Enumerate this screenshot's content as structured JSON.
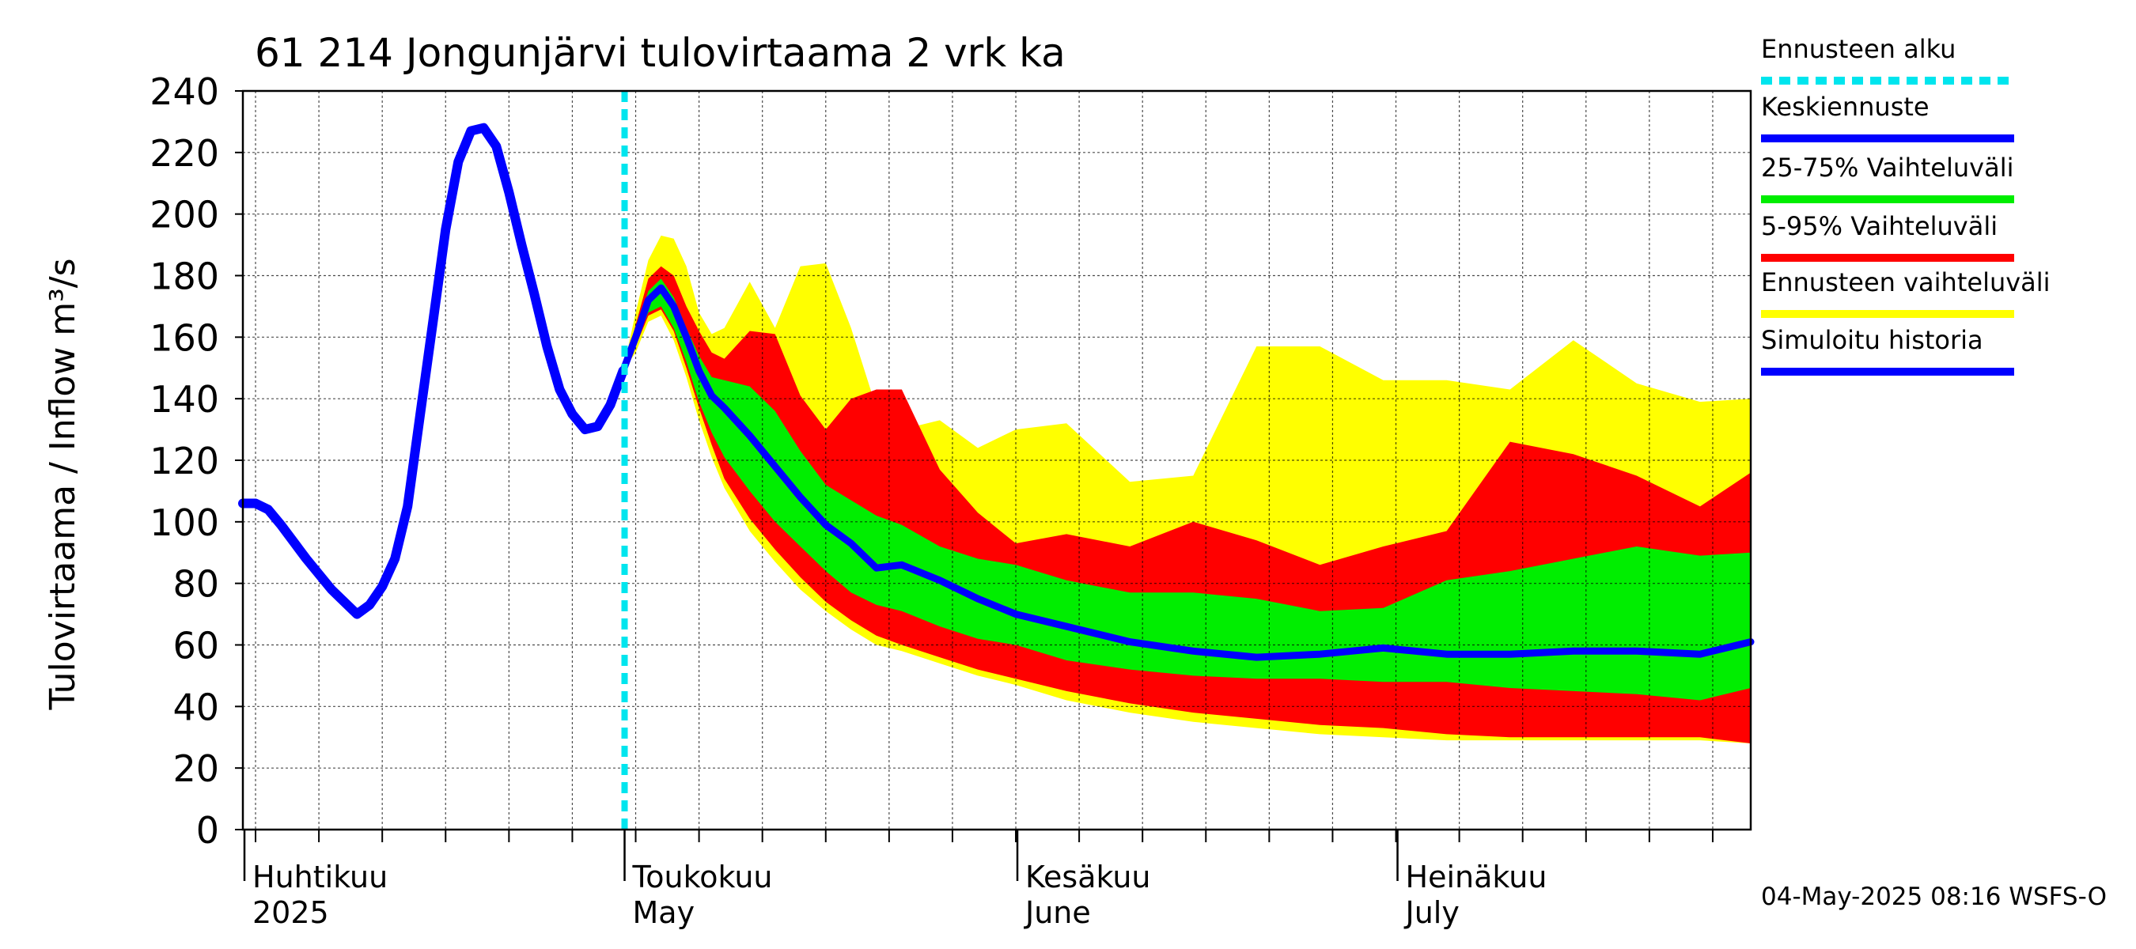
{
  "title": "61 214 Jongunjärvi tulovirtaama 2 vrk ka",
  "ylabel": "Tulovirtaama / Inflow   m³/s",
  "footer": "04-May-2025 08:16 WSFS-O",
  "month_labels": [
    {
      "fi": "Huhtikuu",
      "en": "2025",
      "day": 0
    },
    {
      "fi": "Toukokuu",
      "en": "May",
      "day": 30
    },
    {
      "fi": "Kesäkuu",
      "en": "June",
      "day": 61
    },
    {
      "fi": "Heinäkuu",
      "en": "July",
      "day": 91
    }
  ],
  "legend": [
    {
      "label": "Ennusteen alku",
      "color": "#00e5ee",
      "style": "dotted"
    },
    {
      "label": "Keskiennuste",
      "color": "#0000ff",
      "style": "line"
    },
    {
      "label": "25-75% Vaihteluväli",
      "color": "#00ee00",
      "style": "line"
    },
    {
      "label": "5-95% Vaihteluväli",
      "color": "#ff0000",
      "style": "line"
    },
    {
      "label": "Ennusteen vaihteluväli",
      "color": "#ffff00",
      "style": "line"
    },
    {
      "label": "Simuloitu historia",
      "color": "#0000ff",
      "style": "line"
    }
  ],
  "chart_data": {
    "type": "area",
    "x_unit": "days since 2025-04-01",
    "xlim": [
      0,
      119
    ],
    "ylim": [
      0,
      240
    ],
    "yticks": [
      0,
      20,
      40,
      60,
      80,
      100,
      120,
      140,
      160,
      180,
      200,
      220,
      240
    ],
    "grid": true,
    "forecast_start_day": 30,
    "colors": {
      "forecast_range": "#ffff00",
      "p5_95": "#ff0000",
      "p25_75": "#00ee00",
      "median": "#0000ff",
      "history": "#0000ff",
      "forecast_start": "#00e5ee"
    },
    "history": {
      "x": [
        0,
        1,
        2,
        3,
        5,
        7,
        9,
        10,
        11,
        12,
        13,
        14,
        15,
        16,
        17,
        18,
        19,
        20,
        21,
        22,
        23,
        24,
        25,
        26,
        27,
        28,
        29,
        30
      ],
      "y": [
        106,
        106,
        104,
        99,
        88,
        78,
        70,
        73,
        79,
        88,
        105,
        135,
        165,
        195,
        217,
        227,
        228,
        222,
        207,
        190,
        174,
        157,
        143,
        135,
        130,
        131,
        138,
        149
      ]
    },
    "forecast_x": [
      30,
      31,
      32,
      33,
      34,
      35,
      36,
      37,
      38,
      40,
      42,
      44,
      46,
      48,
      50,
      52,
      55,
      58,
      61,
      65,
      70,
      75,
      80,
      85,
      90,
      95,
      100,
      105,
      110,
      115,
      119
    ],
    "median": [
      149,
      160,
      172,
      176,
      170,
      160,
      149,
      141,
      137,
      128,
      118,
      108,
      99,
      93,
      85,
      86,
      81,
      75,
      70,
      66,
      61,
      58,
      56,
      57,
      59,
      57,
      57,
      58,
      58,
      57,
      61
    ],
    "p25": [
      149,
      158,
      168,
      170,
      163,
      152,
      139,
      129,
      121,
      110,
      100,
      92,
      84,
      77,
      73,
      71,
      66,
      62,
      60,
      55,
      52,
      50,
      49,
      49,
      48,
      48,
      46,
      45,
      44,
      42,
      46
    ],
    "p75": [
      149,
      162,
      175,
      179,
      173,
      163,
      154,
      147,
      146,
      144,
      136,
      123,
      112,
      107,
      102,
      99,
      92,
      88,
      86,
      81,
      77,
      77,
      75,
      71,
      72,
      81,
      84,
      88,
      92,
      89,
      90
    ],
    "p5": [
      149,
      157,
      167,
      169,
      162,
      150,
      137,
      125,
      114,
      101,
      91,
      82,
      74,
      68,
      63,
      60,
      56,
      52,
      49,
      45,
      41,
      38,
      36,
      34,
      33,
      31,
      30,
      30,
      30,
      30,
      28
    ],
    "p95": [
      149,
      164,
      179,
      183,
      180,
      170,
      162,
      155,
      153,
      162,
      161,
      141,
      130,
      140,
      143,
      143,
      117,
      103,
      93,
      96,
      92,
      100,
      94,
      86,
      92,
      97,
      126,
      122,
      115,
      105,
      116
    ],
    "min": [
      149,
      155,
      165,
      167,
      159,
      147,
      133,
      121,
      111,
      97,
      87,
      78,
      71,
      65,
      60,
      58,
      54,
      50,
      47,
      42,
      38,
      35,
      33,
      31,
      30,
      29,
      29,
      29,
      29,
      29,
      28
    ],
    "max": [
      149,
      168,
      185,
      193,
      192,
      183,
      168,
      161,
      163,
      178,
      163,
      183,
      184,
      163,
      137,
      130,
      133,
      124,
      130,
      132,
      113,
      115,
      157,
      157,
      146,
      146,
      143,
      159,
      145,
      139,
      140
    ]
  }
}
